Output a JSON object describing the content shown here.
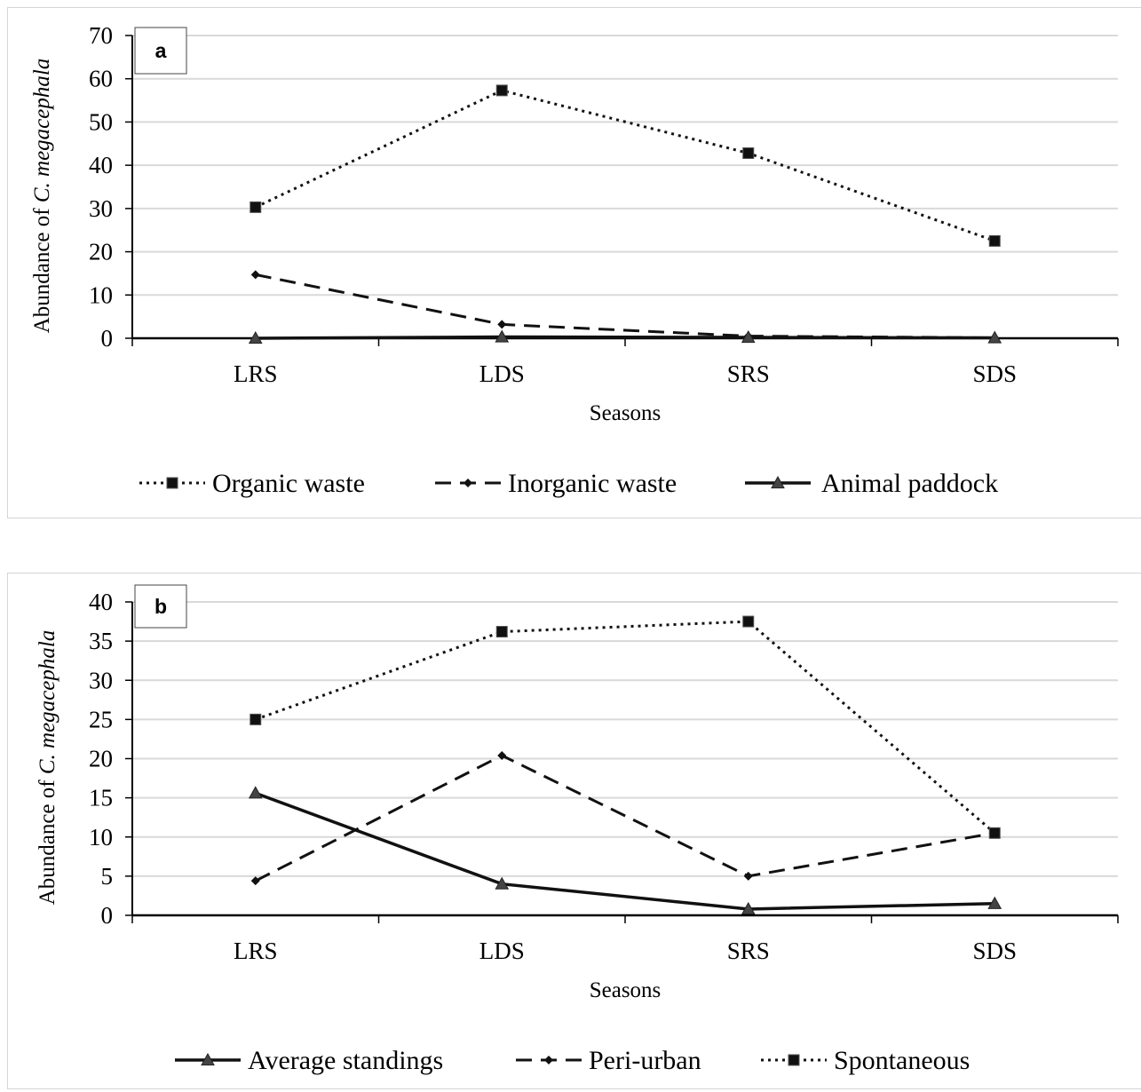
{
  "chart_data": [
    {
      "type": "line",
      "panel_label": "a",
      "categories": [
        "LRS",
        "LDS",
        "SRS",
        "SDS"
      ],
      "xlabel": "Seasons",
      "ylabel_prefix": "Abundance of ",
      "ylabel_species": "C. megacephala",
      "ylim": [
        0,
        70
      ],
      "yticks": [
        0,
        10,
        20,
        30,
        40,
        50,
        60,
        70
      ],
      "grid": true,
      "legend_position": "bottom",
      "series": [
        {
          "name": "Organic waste",
          "values": [
            30.3,
            57.3,
            42.8,
            22.5
          ],
          "line": "dotted",
          "marker": "square",
          "color": "#111111"
        },
        {
          "name": "Inorganic waste",
          "values": [
            14.7,
            3.2,
            0.5,
            0.1
          ],
          "line": "dashed",
          "marker": "diamond",
          "color": "#111111"
        },
        {
          "name": "Animal paddock",
          "values": [
            0.0,
            0.3,
            0.2,
            0.1
          ],
          "line": "solid",
          "marker": "triangle",
          "color": "#111111"
        }
      ]
    },
    {
      "type": "line",
      "panel_label": "b",
      "categories": [
        "LRS",
        "LDS",
        "SRS",
        "SDS"
      ],
      "xlabel": "Seasons",
      "ylabel_prefix": "Abundance of ",
      "ylabel_species": "C. megacephala",
      "ylim": [
        0,
        40
      ],
      "yticks": [
        0,
        5,
        10,
        15,
        20,
        25,
        30,
        35,
        40
      ],
      "grid": true,
      "legend_position": "bottom",
      "series": [
        {
          "name": "Average standings",
          "values": [
            15.6,
            4.0,
            0.8,
            1.5
          ],
          "line": "solid",
          "marker": "triangle",
          "color": "#111111"
        },
        {
          "name": "Peri-urban",
          "values": [
            4.4,
            20.4,
            5.0,
            10.5
          ],
          "line": "dashed",
          "marker": "diamond",
          "color": "#111111"
        },
        {
          "name": "Spontaneous",
          "values": [
            25.0,
            36.2,
            37.5,
            10.5
          ],
          "line": "dotted",
          "marker": "square",
          "color": "#111111"
        }
      ]
    }
  ]
}
